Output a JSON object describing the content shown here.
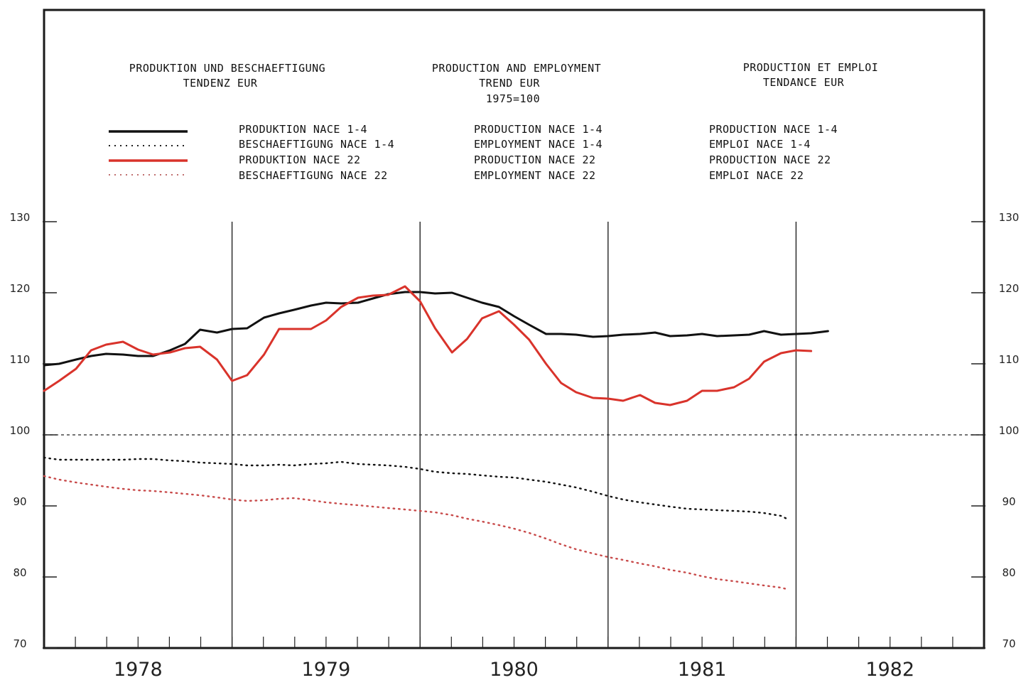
{
  "titles": {
    "de": [
      "PRODUKTION UND BESCHAEFTIGUNG",
      "TENDENZ EUR"
    ],
    "en": [
      "PRODUCTION AND EMPLOYMENT",
      "TREND EUR",
      "1975=100"
    ],
    "fr": [
      "PRODUCTION ET EMPLOI",
      "TENDANCE EUR"
    ]
  },
  "legend": [
    {
      "color": "#111111",
      "style": "solid",
      "labels": {
        "de": "PRODUKTION NACE 1-4",
        "en": "PRODUCTION NACE 1-4",
        "fr": "PRODUCTION NACE 1-4"
      }
    },
    {
      "color": "#111111",
      "style": "dotted",
      "labels": {
        "de": "BESCHAEFTIGUNG NACE 1-4",
        "en": "EMPLOYMENT NACE 1-4",
        "fr": "EMPLOI NACE 1-4"
      }
    },
    {
      "color": "#d9332b",
      "style": "solid",
      "labels": {
        "de": "PRODUKTION NACE 22",
        "en": "PRODUCTION NACE 22",
        "fr": "PRODUCTION NACE 22"
      }
    },
    {
      "color": "#c84a4a",
      "style": "dotted",
      "labels": {
        "de": "BESCHAEFTIGUNG NACE 22",
        "en": "EMPLOYMENT NACE 22",
        "fr": "EMPLOI NACE 22"
      }
    }
  ],
  "chart_data": {
    "type": "line",
    "xlim": [
      1977.75,
      1982.75
    ],
    "ylim": [
      70,
      130
    ],
    "y_ticks": [
      "70",
      "80",
      "90",
      "100",
      "110",
      "120",
      "130"
    ],
    "x_tick_labels": [
      "1978",
      "1979",
      "1980",
      "1981",
      "1982"
    ],
    "year_dividers": [
      1978.75,
      1979.75,
      1980.75,
      1981.75
    ],
    "reference_line": 100,
    "series": [
      {
        "color": "#111111",
        "style": "solid",
        "points": [
          [
            1977.75,
            109.8
          ],
          [
            1977.83,
            110.0
          ],
          [
            1977.92,
            110.6
          ],
          [
            1978.0,
            111.1
          ],
          [
            1978.08,
            111.4
          ],
          [
            1978.17,
            111.3
          ],
          [
            1978.25,
            111.1
          ],
          [
            1978.33,
            111.1
          ],
          [
            1978.42,
            111.9
          ],
          [
            1978.5,
            112.8
          ],
          [
            1978.58,
            114.8
          ],
          [
            1978.67,
            114.4
          ],
          [
            1978.75,
            114.9
          ],
          [
            1978.83,
            115.0
          ],
          [
            1978.92,
            116.5
          ],
          [
            1979.0,
            117.1
          ],
          [
            1979.08,
            117.6
          ],
          [
            1979.17,
            118.2
          ],
          [
            1979.25,
            118.6
          ],
          [
            1979.33,
            118.5
          ],
          [
            1979.42,
            118.6
          ],
          [
            1979.5,
            119.2
          ],
          [
            1979.58,
            119.8
          ],
          [
            1979.67,
            120.1
          ],
          [
            1979.75,
            120.1
          ],
          [
            1979.83,
            119.9
          ],
          [
            1979.92,
            120.0
          ],
          [
            1980.0,
            119.3
          ],
          [
            1980.08,
            118.6
          ],
          [
            1980.17,
            118.0
          ],
          [
            1980.25,
            116.7
          ],
          [
            1980.33,
            115.5
          ],
          [
            1980.42,
            114.2
          ],
          [
            1980.5,
            114.2
          ],
          [
            1980.58,
            114.1
          ],
          [
            1980.67,
            113.8
          ],
          [
            1980.75,
            113.9
          ],
          [
            1980.83,
            114.1
          ],
          [
            1980.92,
            114.2
          ],
          [
            1981.0,
            114.4
          ],
          [
            1981.08,
            113.9
          ],
          [
            1981.17,
            114.0
          ],
          [
            1981.25,
            114.2
          ],
          [
            1981.33,
            113.9
          ],
          [
            1981.42,
            114.0
          ],
          [
            1981.5,
            114.1
          ],
          [
            1981.58,
            114.6
          ],
          [
            1981.67,
            114.1
          ],
          [
            1981.75,
            114.2
          ],
          [
            1981.83,
            114.3
          ],
          [
            1981.92,
            114.6
          ]
        ]
      },
      {
        "color": "#111111",
        "style": "dotted",
        "points": [
          [
            1977.75,
            96.8
          ],
          [
            1977.83,
            96.5
          ],
          [
            1977.92,
            96.5
          ],
          [
            1978.0,
            96.5
          ],
          [
            1978.08,
            96.5
          ],
          [
            1978.17,
            96.5
          ],
          [
            1978.25,
            96.6
          ],
          [
            1978.33,
            96.6
          ],
          [
            1978.42,
            96.4
          ],
          [
            1978.5,
            96.3
          ],
          [
            1978.58,
            96.1
          ],
          [
            1978.67,
            96.0
          ],
          [
            1978.75,
            95.9
          ],
          [
            1978.83,
            95.7
          ],
          [
            1978.92,
            95.7
          ],
          [
            1979.0,
            95.8
          ],
          [
            1979.08,
            95.7
          ],
          [
            1979.17,
            95.9
          ],
          [
            1979.25,
            96.0
          ],
          [
            1979.33,
            96.2
          ],
          [
            1979.42,
            95.9
          ],
          [
            1979.5,
            95.8
          ],
          [
            1979.58,
            95.7
          ],
          [
            1979.67,
            95.5
          ],
          [
            1979.75,
            95.2
          ],
          [
            1979.83,
            94.8
          ],
          [
            1979.92,
            94.6
          ],
          [
            1980.0,
            94.5
          ],
          [
            1980.08,
            94.3
          ],
          [
            1980.17,
            94.1
          ],
          [
            1980.25,
            94.0
          ],
          [
            1980.33,
            93.7
          ],
          [
            1980.42,
            93.4
          ],
          [
            1980.5,
            93.0
          ],
          [
            1980.58,
            92.6
          ],
          [
            1980.67,
            92.0
          ],
          [
            1980.75,
            91.4
          ],
          [
            1980.83,
            90.9
          ],
          [
            1980.92,
            90.5
          ],
          [
            1981.0,
            90.2
          ],
          [
            1981.08,
            89.9
          ],
          [
            1981.17,
            89.6
          ],
          [
            1981.25,
            89.5
          ],
          [
            1981.33,
            89.4
          ],
          [
            1981.42,
            89.3
          ],
          [
            1981.5,
            89.2
          ],
          [
            1981.58,
            89.0
          ],
          [
            1981.67,
            88.6
          ],
          [
            1981.7,
            88.2
          ]
        ]
      },
      {
        "color": "#d9332b",
        "style": "solid",
        "points": [
          [
            1977.75,
            106.2
          ],
          [
            1977.83,
            107.6
          ],
          [
            1977.92,
            109.3
          ],
          [
            1978.0,
            111.9
          ],
          [
            1978.08,
            112.7
          ],
          [
            1978.17,
            113.1
          ],
          [
            1978.25,
            112.0
          ],
          [
            1978.33,
            111.3
          ],
          [
            1978.42,
            111.6
          ],
          [
            1978.5,
            112.2
          ],
          [
            1978.58,
            112.4
          ],
          [
            1978.67,
            110.6
          ],
          [
            1978.75,
            107.6
          ],
          [
            1978.83,
            108.4
          ],
          [
            1978.92,
            111.3
          ],
          [
            1979.0,
            114.9
          ],
          [
            1979.08,
            114.9
          ],
          [
            1979.17,
            114.9
          ],
          [
            1979.25,
            116.1
          ],
          [
            1979.33,
            118.0
          ],
          [
            1979.42,
            119.3
          ],
          [
            1979.5,
            119.6
          ],
          [
            1979.58,
            119.7
          ],
          [
            1979.67,
            120.9
          ],
          [
            1979.75,
            118.8
          ],
          [
            1979.83,
            115.0
          ],
          [
            1979.92,
            111.6
          ],
          [
            1980.0,
            113.5
          ],
          [
            1980.08,
            116.4
          ],
          [
            1980.17,
            117.4
          ],
          [
            1980.25,
            115.5
          ],
          [
            1980.33,
            113.4
          ],
          [
            1980.42,
            110.0
          ],
          [
            1980.5,
            107.3
          ],
          [
            1980.58,
            106.0
          ],
          [
            1980.67,
            105.2
          ],
          [
            1980.75,
            105.1
          ],
          [
            1980.83,
            104.8
          ],
          [
            1980.92,
            105.6
          ],
          [
            1981.0,
            104.5
          ],
          [
            1981.08,
            104.2
          ],
          [
            1981.17,
            104.8
          ],
          [
            1981.25,
            106.2
          ],
          [
            1981.33,
            106.2
          ],
          [
            1981.42,
            106.7
          ],
          [
            1981.5,
            107.9
          ],
          [
            1981.58,
            110.3
          ],
          [
            1981.67,
            111.5
          ],
          [
            1981.75,
            111.9
          ],
          [
            1981.83,
            111.8
          ]
        ]
      },
      {
        "color": "#c84a4a",
        "style": "dotted",
        "points": [
          [
            1977.75,
            94.2
          ],
          [
            1977.83,
            93.7
          ],
          [
            1977.92,
            93.3
          ],
          [
            1978.0,
            93.0
          ],
          [
            1978.08,
            92.7
          ],
          [
            1978.17,
            92.4
          ],
          [
            1978.25,
            92.2
          ],
          [
            1978.33,
            92.1
          ],
          [
            1978.42,
            91.9
          ],
          [
            1978.5,
            91.7
          ],
          [
            1978.58,
            91.5
          ],
          [
            1978.67,
            91.2
          ],
          [
            1978.75,
            90.9
          ],
          [
            1978.83,
            90.7
          ],
          [
            1978.92,
            90.8
          ],
          [
            1979.0,
            91.0
          ],
          [
            1979.08,
            91.1
          ],
          [
            1979.17,
            90.8
          ],
          [
            1979.25,
            90.5
          ],
          [
            1979.33,
            90.3
          ],
          [
            1979.42,
            90.1
          ],
          [
            1979.5,
            89.9
          ],
          [
            1979.58,
            89.7
          ],
          [
            1979.67,
            89.5
          ],
          [
            1979.75,
            89.3
          ],
          [
            1979.83,
            89.1
          ],
          [
            1979.92,
            88.7
          ],
          [
            1980.0,
            88.2
          ],
          [
            1980.08,
            87.8
          ],
          [
            1980.17,
            87.3
          ],
          [
            1980.25,
            86.8
          ],
          [
            1980.33,
            86.2
          ],
          [
            1980.42,
            85.4
          ],
          [
            1980.5,
            84.6
          ],
          [
            1980.58,
            83.9
          ],
          [
            1980.67,
            83.3
          ],
          [
            1980.75,
            82.8
          ],
          [
            1980.83,
            82.4
          ],
          [
            1980.92,
            81.9
          ],
          [
            1981.0,
            81.5
          ],
          [
            1981.08,
            81.0
          ],
          [
            1981.17,
            80.6
          ],
          [
            1981.25,
            80.1
          ],
          [
            1981.33,
            79.7
          ],
          [
            1981.42,
            79.4
          ],
          [
            1981.5,
            79.1
          ],
          [
            1981.58,
            78.8
          ],
          [
            1981.67,
            78.5
          ],
          [
            1981.7,
            78.3
          ]
        ]
      }
    ]
  }
}
